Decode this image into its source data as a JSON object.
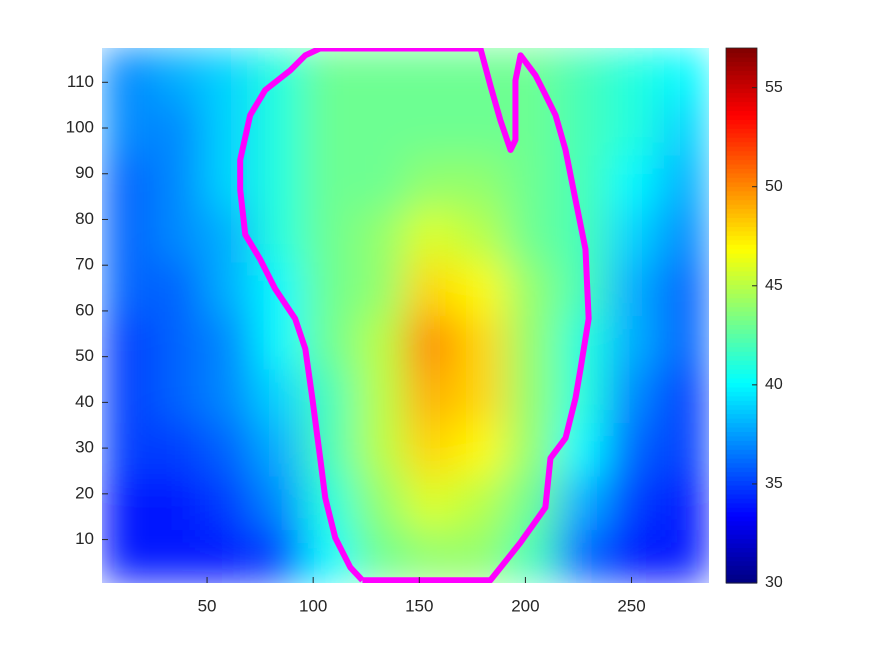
{
  "chart_data": {
    "type": "heatmap",
    "xlim": [
      0.5,
      286.5
    ],
    "ylim": [
      0.5,
      117.5
    ],
    "xticks": [
      50,
      100,
      150,
      200,
      250
    ],
    "yticks": [
      10,
      20,
      30,
      40,
      50,
      60,
      70,
      80,
      90,
      100,
      110
    ],
    "colormap": "jet",
    "clim": [
      30,
      57
    ],
    "cticks": [
      30,
      35,
      40,
      45,
      50,
      55
    ],
    "z": [
      [
        34,
        34,
        34,
        35,
        40,
        43,
        44,
        44,
        42,
        36,
        34,
        34
      ],
      [
        34,
        34,
        35,
        37,
        41,
        44,
        46,
        45,
        43,
        38,
        35,
        34
      ],
      [
        35,
        35,
        36,
        38,
        42,
        45,
        48,
        47,
        44,
        40,
        36,
        35
      ],
      [
        35,
        36,
        37,
        39,
        42,
        45,
        49,
        48,
        44,
        41,
        37,
        35
      ],
      [
        35,
        36,
        37,
        40,
        43,
        45,
        50,
        48,
        44,
        41,
        38,
        36
      ],
      [
        36,
        36,
        38,
        40,
        43,
        44,
        48,
        47,
        44,
        42,
        38,
        36
      ],
      [
        36,
        37,
        38,
        41,
        43,
        44,
        46,
        45,
        43,
        42,
        39,
        37
      ],
      [
        36,
        37,
        39,
        41,
        43,
        43,
        44,
        44,
        43,
        42,
        40,
        38
      ],
      [
        37,
        37,
        39,
        41,
        43,
        43,
        43,
        43,
        43,
        42,
        41,
        39
      ],
      [
        37,
        38,
        39,
        41,
        43,
        43,
        43,
        43,
        43,
        42,
        41,
        40
      ]
    ],
    "contour": {
      "color": "#ff00ff",
      "x": [
        123.2,
        183.5,
        197.6,
        209.4,
        211.8,
        218.9,
        223.6,
        226,
        229.8,
        228.3,
        223.6,
        218.9,
        214.2,
        209.5,
        204.8,
        197.7,
        195.3,
        195.3,
        193,
        188.2,
        183.5,
        178.8,
        103.3,
        96.3,
        89.2,
        77.4,
        70.3,
        65.6,
        65.6,
        68,
        75,
        82.1,
        91.5,
        96.3,
        99.6,
        103.3,
        105.7,
        110.4,
        117.5,
        123.2
      ],
      "y": [
        1.1,
        1.1,
        9.3,
        17,
        27.8,
        32.2,
        40.9,
        47.4,
        58.3,
        73.5,
        84.3,
        95.2,
        102.8,
        107.2,
        111.5,
        115.9,
        110.4,
        97.4,
        95.2,
        101.7,
        109.3,
        117.4,
        117.4,
        115.9,
        112.6,
        108.3,
        102.8,
        93,
        86.5,
        76.7,
        71.3,
        64.8,
        58.3,
        51.7,
        40.9,
        27.8,
        19.1,
        10.4,
        3.9,
        1.1
      ]
    }
  }
}
